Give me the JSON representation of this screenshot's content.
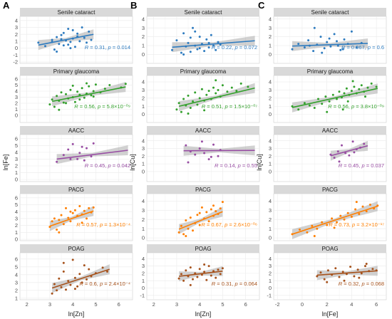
{
  "figure": {
    "panel_letters": [
      "A",
      "B",
      "C"
    ],
    "row_titles": [
      "Senile cataract",
      "Primary glaucoma",
      "AACC",
      "PACG",
      "POAG"
    ],
    "row_colors": [
      "#2e7bbf",
      "#33a02c",
      "#984ea3",
      "#ff7f00",
      "#a6521c"
    ]
  },
  "chart_data": [
    {
      "type": "scatter",
      "panel": "A",
      "xlabel": "ln[Zn]",
      "ylabel": "ln[Fe]",
      "xlim": [
        1.7,
        6.6
      ],
      "xticks": [
        2,
        3,
        4,
        5,
        6
      ],
      "facets": [
        {
          "title": "Senile cataract",
          "ylim": [
            -2.2,
            4.6
          ],
          "yticks": [
            -2,
            -1,
            0,
            1,
            2,
            3,
            4
          ],
          "x": [
            2.5,
            2.8,
            3.1,
            3.2,
            3.3,
            3.4,
            3.5,
            3.6,
            3.7,
            3.8,
            3.9,
            4.0,
            4.1,
            4.2,
            4.3,
            4.4,
            4.5,
            4.6,
            4.7,
            4.8,
            3.3,
            3.6,
            3.9,
            4.2,
            3.5,
            3.8,
            4.0,
            3.1
          ],
          "y": [
            0.8,
            0.3,
            1.2,
            -0.2,
            1.6,
            0.6,
            1.9,
            0.4,
            1.1,
            2.8,
            0.9,
            1.4,
            0.2,
            2.1,
            1.0,
            3.0,
            1.5,
            0.8,
            2.4,
            1.2,
            -0.5,
            2.2,
            0.0,
            1.7,
            1.3,
            0.5,
            2.6,
            0.9
          ],
          "fit": [
            2.5,
            0.45,
            4.9,
            2.0
          ],
          "stat": {
            "R": "0.31",
            "p": "0.014"
          }
        },
        {
          "title": "Primary glaucoma",
          "ylim": [
            -1.2,
            6.6
          ],
          "yticks": [
            0,
            1,
            2,
            3,
            4,
            5,
            6
          ],
          "x": [
            3.0,
            3.1,
            3.2,
            3.3,
            3.4,
            3.5,
            3.6,
            3.7,
            3.8,
            3.9,
            4.0,
            4.1,
            4.2,
            4.3,
            4.4,
            4.5,
            4.6,
            4.7,
            4.8,
            4.9,
            5.0,
            5.2,
            5.4,
            5.6,
            6.1,
            6.3,
            3.4,
            3.7,
            4.0,
            4.3,
            4.6,
            4.9
          ],
          "y": [
            1.8,
            2.6,
            1.4,
            3.2,
            2.4,
            3.8,
            2.1,
            3.5,
            2.8,
            4.2,
            3.0,
            2.2,
            3.9,
            3.4,
            4.5,
            2.9,
            3.6,
            4.8,
            3.3,
            4.0,
            5.1,
            3.8,
            4.4,
            5.0,
            4.6,
            5.2,
            0.9,
            2.0,
            4.9,
            2.6,
            5.3,
            3.1
          ],
          "fit": [
            3.1,
            2.3,
            6.3,
            4.7
          ],
          "stat": {
            "R": "0.56",
            "p": "5.8×10⁻⁰⁹"
          }
        },
        {
          "title": "AACC",
          "ylim": [
            -0.3,
            6.6
          ],
          "yticks": [
            0,
            1,
            2,
            3,
            4,
            5,
            6
          ],
          "x": [
            3.3,
            3.6,
            3.8,
            4.0,
            4.2,
            4.4,
            4.5,
            4.6,
            4.8,
            4.9,
            3.9,
            4.3
          ],
          "y": [
            2.6,
            3.6,
            4.4,
            5.2,
            3.0,
            4.8,
            2.8,
            4.6,
            3.4,
            5.3,
            3.0,
            3.9
          ],
          "fit": [
            3.3,
            3.0,
            6.4,
            4.3
          ],
          "stat": {
            "R": "0.45",
            "p": "0.042"
          }
        },
        {
          "title": "PACG",
          "ylim": [
            -0.2,
            6.6
          ],
          "yticks": [
            0,
            1,
            2,
            3,
            4,
            5,
            6
          ],
          "x": [
            3.0,
            3.1,
            3.2,
            3.3,
            3.4,
            3.5,
            3.6,
            3.7,
            3.8,
            3.9,
            4.0,
            4.1,
            4.2,
            4.3,
            4.4,
            4.5,
            4.6,
            4.7,
            4.8,
            4.9,
            3.4,
            3.9,
            4.4
          ],
          "y": [
            1.8,
            2.6,
            3.0,
            1.4,
            2.8,
            3.5,
            2.2,
            4.5,
            3.1,
            2.6,
            3.8,
            4.2,
            3.4,
            4.8,
            3.6,
            4.1,
            3.0,
            4.5,
            3.9,
            4.6,
            1.0,
            4.0,
            2.4
          ],
          "fit": [
            3.0,
            1.9,
            4.9,
            4.1
          ],
          "stat": {
            "R": "0.57",
            "p": "1.3×10⁻⁴"
          }
        },
        {
          "title": "POAG",
          "ylim": [
            0.8,
            6.8
          ],
          "yticks": [
            1,
            2,
            3,
            4,
            5,
            6
          ],
          "x": [
            3.1,
            3.2,
            3.3,
            3.4,
            3.5,
            3.6,
            3.7,
            3.8,
            3.9,
            4.0,
            4.1,
            4.2,
            4.3,
            4.4,
            4.5,
            4.6,
            4.7,
            4.8,
            5.0,
            5.3,
            5.5,
            3.6,
            4.1
          ],
          "y": [
            1.6,
            2.8,
            2.0,
            3.5,
            2.4,
            4.4,
            2.1,
            3.2,
            2.7,
            5.9,
            3.6,
            2.5,
            4.1,
            3.0,
            5.2,
            3.4,
            4.7,
            3.8,
            4.2,
            4.9,
            4.4,
            5.5,
            2.2
          ],
          "fit": [
            3.1,
            2.3,
            5.6,
            4.7
          ],
          "stat": {
            "R": "0.6",
            "p": "2.4×10⁻⁴"
          }
        }
      ]
    },
    {
      "type": "scatter",
      "panel": "B",
      "xlabel": "ln[Zn]",
      "ylabel": "ln[Cu]",
      "xlim": [
        1.7,
        6.6
      ],
      "xticks": [
        2,
        3,
        4,
        5,
        6
      ],
      "facets": [
        {
          "title": "Senile cataract",
          "ylim": [
            -1.0,
            4.3
          ],
          "yticks": [
            0,
            1,
            2,
            3,
            4
          ],
          "x": [
            2.8,
            3.0,
            3.2,
            3.3,
            3.4,
            3.5,
            3.6,
            3.7,
            3.8,
            3.9,
            4.0,
            4.1,
            4.2,
            4.3,
            4.4,
            4.5,
            4.6,
            4.7,
            4.8,
            4.9,
            3.3,
            3.6,
            4.0,
            4.4,
            3.8
          ],
          "y": [
            0.5,
            1.6,
            0.2,
            2.4,
            0.9,
            1.3,
            0.3,
            3.0,
            1.0,
            0.6,
            2.0,
            1.2,
            0.4,
            1.7,
            0.8,
            2.2,
            1.0,
            0.5,
            1.4,
            1.1,
            0.0,
            1.9,
            0.7,
            1.3,
            2.6
          ],
          "fit": [
            2.8,
            0.82,
            6.4,
            1.55
          ],
          "stat": {
            "R": "0.22",
            "p": "0.072"
          }
        },
        {
          "title": "Primary glaucoma",
          "ylim": [
            -1.0,
            4.8
          ],
          "yticks": [
            0,
            1,
            2,
            3,
            4
          ],
          "x": [
            3.0,
            3.1,
            3.2,
            3.3,
            3.4,
            3.5,
            3.6,
            3.7,
            3.8,
            3.9,
            4.0,
            4.1,
            4.2,
            4.3,
            4.4,
            4.5,
            4.6,
            4.7,
            4.8,
            4.9,
            5.0,
            5.2,
            5.4,
            5.6,
            5.8,
            6.1,
            3.5,
            4.2,
            4.7
          ],
          "y": [
            0.6,
            1.4,
            0.3,
            1.9,
            1.1,
            2.3,
            0.8,
            1.6,
            2.7,
            1.2,
            2.0,
            3.1,
            1.7,
            2.4,
            2.9,
            1.9,
            3.3,
            2.6,
            3.0,
            2.2,
            3.6,
            2.8,
            3.3,
            2.9,
            3.8,
            3.4,
            0.1,
            0.5,
            4.2
          ],
          "fit": [
            3.1,
            1.0,
            6.4,
            3.25
          ],
          "stat": {
            "R": "0.51",
            "p": "1.5×10⁻⁰⁷"
          }
        },
        {
          "title": "AACC",
          "ylim": [
            -1.3,
            4.8
          ],
          "yticks": [
            0,
            1,
            2,
            3,
            4
          ],
          "x": [
            3.4,
            3.6,
            3.8,
            4.0,
            4.2,
            4.4,
            4.6,
            4.8,
            3.5,
            4.1,
            4.5,
            4.9
          ],
          "y": [
            3.4,
            2.6,
            2.2,
            3.0,
            2.4,
            1.6,
            3.5,
            2.0,
            1.2,
            3.9,
            1.9,
            2.8
          ],
          "fit": [
            3.3,
            2.7,
            6.4,
            2.75
          ],
          "stat": {
            "R": "0.14",
            "p": "0.55"
          }
        },
        {
          "title": "PACG",
          "ylim": [
            -0.3,
            4.8
          ],
          "yticks": [
            0,
            1,
            2,
            3,
            4
          ],
          "x": [
            3.1,
            3.2,
            3.3,
            3.4,
            3.5,
            3.6,
            3.7,
            3.8,
            3.9,
            4.0,
            4.1,
            4.2,
            4.3,
            4.4,
            4.5,
            4.6,
            4.7,
            4.8,
            4.9,
            5.0,
            3.4,
            4.0,
            4.6
          ],
          "y": [
            0.6,
            1.3,
            0.4,
            1.9,
            1.0,
            2.2,
            0.8,
            1.6,
            2.5,
            1.4,
            3.3,
            2.1,
            2.8,
            1.8,
            3.1,
            2.4,
            2.9,
            2.6,
            3.2,
            3.9,
            0.2,
            2.7,
            3.5
          ],
          "fit": [
            3.1,
            0.95,
            5.0,
            2.85
          ],
          "stat": {
            "R": "0.67",
            "p": "2.6×10⁻⁰⁶"
          }
        },
        {
          "title": "POAG",
          "ylim": [
            -1.6,
            4.8
          ],
          "yticks": [
            -1,
            0,
            1,
            2,
            3,
            4
          ],
          "x": [
            3.1,
            3.2,
            3.3,
            3.4,
            3.5,
            3.6,
            3.7,
            3.8,
            3.9,
            4.0,
            4.1,
            4.2,
            4.3,
            4.4,
            4.5,
            4.6,
            4.7,
            4.8,
            4.9,
            5.0,
            3.6,
            4.2
          ],
          "y": [
            1.3,
            1.9,
            1.0,
            2.4,
            1.6,
            2.8,
            1.2,
            2.0,
            1.5,
            2.6,
            1.8,
            2.2,
            1.1,
            3.0,
            1.7,
            2.3,
            1.4,
            2.5,
            1.9,
            2.7,
            0.4,
            3.2
          ],
          "fit": [
            3.1,
            1.6,
            5.0,
            2.3
          ],
          "stat": {
            "R": "0.31",
            "p": "0.064"
          }
        }
      ]
    },
    {
      "type": "scatter",
      "panel": "C",
      "xlabel": "ln[Fe]",
      "ylabel": "ln[Cu]",
      "xlim": [
        -2.3,
        6.8
      ],
      "xticks": [
        -2,
        0,
        2,
        4,
        6
      ],
      "facets": [
        {
          "title": "Senile cataract",
          "ylim": [
            -1.0,
            4.3
          ],
          "yticks": [
            0,
            1,
            2,
            3,
            4
          ],
          "x": [
            -0.8,
            -0.3,
            0.2,
            0.5,
            0.9,
            1.2,
            1.5,
            1.8,
            2.0,
            2.3,
            2.6,
            2.9,
            3.1,
            3.4,
            3.7,
            4.0,
            4.4,
            4.8,
            1.0,
            1.6,
            2.2,
            2.8,
            0.6,
            3.3
          ],
          "y": [
            0.6,
            1.2,
            0.8,
            1.6,
            0.4,
            1.1,
            2.0,
            0.7,
            1.4,
            0.9,
            2.3,
            1.0,
            0.5,
            1.7,
            1.2,
            2.6,
            0.8,
            1.3,
            3.0,
            0.2,
            1.8,
            1.5,
            1.0,
            0.6
          ],
          "fit": [
            -0.8,
            0.95,
            5.3,
            1.25
          ],
          "stat": {
            "R": "0.067",
            "p": "0.6"
          }
        },
        {
          "title": "Primary glaucoma",
          "ylim": [
            -1.0,
            4.8
          ],
          "yticks": [
            0,
            1,
            2,
            3,
            4
          ],
          "x": [
            -0.8,
            -0.3,
            0.2,
            0.6,
            1.0,
            1.3,
            1.6,
            1.9,
            2.2,
            2.5,
            2.8,
            3.0,
            3.2,
            3.4,
            3.6,
            3.8,
            4.0,
            4.2,
            4.4,
            4.6,
            4.8,
            5.0,
            5.3,
            5.6,
            6.0,
            2.0,
            3.3,
            4.1,
            5.1,
            3.7
          ],
          "y": [
            1.0,
            0.6,
            1.4,
            1.1,
            0.8,
            1.9,
            1.3,
            2.2,
            1.6,
            2.4,
            1.9,
            2.8,
            2.1,
            2.6,
            3.2,
            2.4,
            2.9,
            3.4,
            2.6,
            3.1,
            3.6,
            2.8,
            3.3,
            3.8,
            3.4,
            0.3,
            0.6,
            4.1,
            2.2,
            1.6
          ],
          "fit": [
            -0.8,
            0.85,
            6.1,
            3.2
          ],
          "stat": {
            "R": "0.56",
            "p": "3.8×10⁻⁰⁹"
          }
        },
        {
          "title": "AACC",
          "ylim": [
            -1.3,
            4.8
          ],
          "yticks": [
            0,
            1,
            2,
            3,
            4
          ],
          "x": [
            2.3,
            2.6,
            2.9,
            3.2,
            3.5,
            3.8,
            4.1,
            4.4,
            4.7,
            5.0,
            3.0,
            4.2
          ],
          "y": [
            2.2,
            1.8,
            2.6,
            3.4,
            2.4,
            2.1,
            3.9,
            2.9,
            3.1,
            3.6,
            1.3,
            2.5
          ],
          "fit": [
            2.3,
            2.05,
            5.3,
            3.35
          ],
          "stat": {
            "R": "0.45",
            "p": "0.037"
          }
        },
        {
          "title": "PACG",
          "ylim": [
            -0.3,
            4.8
          ],
          "yticks": [
            0,
            1,
            2,
            3,
            4
          ],
          "x": [
            -0.8,
            -0.2,
            0.4,
            0.8,
            1.2,
            1.6,
            2.0,
            2.4,
            2.8,
            3.1,
            3.4,
            3.7,
            4.0,
            4.3,
            4.6,
            4.9,
            5.2,
            5.5,
            5.8,
            6.1,
            1.0,
            2.6,
            4.4
          ],
          "y": [
            0.4,
            0.9,
            0.6,
            1.3,
            1.0,
            1.7,
            1.4,
            2.1,
            1.7,
            2.4,
            2.0,
            2.7,
            2.3,
            3.1,
            2.6,
            3.4,
            2.9,
            3.6,
            3.2,
            3.5,
            0.2,
            1.1,
            3.9
          ],
          "fit": [
            -0.8,
            0.4,
            6.1,
            3.45
          ],
          "stat": {
            "R": "0.73",
            "p": "3.2×10⁻¹⁷"
          }
        },
        {
          "title": "POAG",
          "ylim": [
            -1.6,
            4.8
          ],
          "yticks": [
            -1,
            0,
            1,
            2,
            3,
            4
          ],
          "x": [
            1.2,
            1.5,
            1.8,
            2.1,
            2.4,
            2.7,
            3.0,
            3.3,
            3.6,
            3.9,
            4.2,
            4.5,
            4.8,
            5.1,
            5.4,
            5.7,
            6.0,
            2.0,
            3.4,
            4.6,
            5.2
          ],
          "y": [
            1.6,
            2.1,
            1.2,
            2.4,
            1.8,
            2.7,
            1.5,
            2.2,
            1.9,
            2.9,
            1.6,
            2.5,
            2.0,
            3.0,
            2.3,
            2.6,
            2.4,
            0.8,
            1.0,
            1.4,
            3.3
          ],
          "fit": [
            1.2,
            1.75,
            6.1,
            2.35
          ],
          "stat": {
            "R": "0.32",
            "p": "0.068"
          }
        }
      ]
    }
  ]
}
